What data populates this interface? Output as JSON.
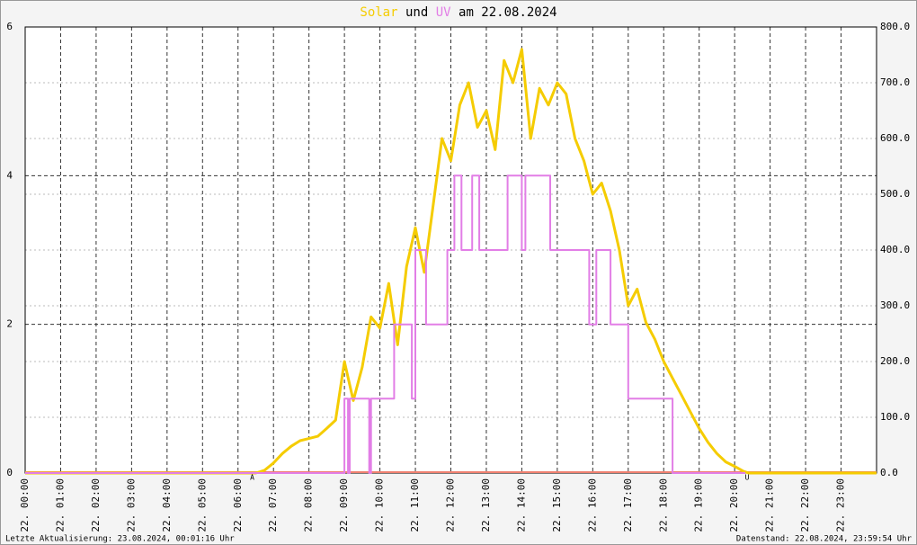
{
  "chart_data": {
    "type": "line",
    "title_middle": "und",
    "title_end": "am 22.08.2024",
    "xlim": [
      0,
      24
    ],
    "xticks": [
      {
        "value": 0,
        "label": "22. 00:00"
      },
      {
        "value": 1,
        "label": "22. 01:00"
      },
      {
        "value": 2,
        "label": "22. 02:00"
      },
      {
        "value": 3,
        "label": "22. 03:00"
      },
      {
        "value": 4,
        "label": "22. 04:00"
      },
      {
        "value": 5,
        "label": "22. 05:00"
      },
      {
        "value": 6,
        "label": "22. 06:00"
      },
      {
        "value": 7,
        "label": "22. 07:00"
      },
      {
        "value": 8,
        "label": "22. 08:00"
      },
      {
        "value": 9,
        "label": "22. 09:00"
      },
      {
        "value": 10,
        "label": "22. 10:00"
      },
      {
        "value": 11,
        "label": "22. 11:00"
      },
      {
        "value": 12,
        "label": "22. 12:00"
      },
      {
        "value": 13,
        "label": "22. 13:00"
      },
      {
        "value": 14,
        "label": "22. 14:00"
      },
      {
        "value": 15,
        "label": "22. 15:00"
      },
      {
        "value": 16,
        "label": "22. 16:00"
      },
      {
        "value": 17,
        "label": "22. 17:00"
      },
      {
        "value": 18,
        "label": "22. 18:00"
      },
      {
        "value": 19,
        "label": "22. 19:00"
      },
      {
        "value": 20,
        "label": "22. 20:00"
      },
      {
        "value": 21,
        "label": "22. 21:00"
      },
      {
        "value": 22,
        "label": "22. 22:00"
      },
      {
        "value": 23,
        "label": "22. 23:00"
      }
    ],
    "ylim": [
      0,
      6
    ],
    "yticks": [
      0,
      2,
      4,
      6
    ],
    "y2lim": [
      0,
      800
    ],
    "y2ticks": [
      {
        "value": 0,
        "label": "0.0"
      },
      {
        "value": 100,
        "label": "100.0"
      },
      {
        "value": 200,
        "label": "200.0"
      },
      {
        "value": 300,
        "label": "300.0"
      },
      {
        "value": 400,
        "label": "400.0"
      },
      {
        "value": 500,
        "label": "500.0"
      },
      {
        "value": 600,
        "label": "600.0"
      },
      {
        "value": 700,
        "label": "700.0"
      },
      {
        "value": 800,
        "label": "800.0"
      }
    ],
    "grid": true,
    "series": [
      {
        "name": "Solar",
        "color": "#f5cc00",
        "axis": "y2",
        "x": [
          0,
          6.5,
          6.75,
          7.0,
          7.25,
          7.5,
          7.75,
          8.0,
          8.25,
          8.5,
          8.75,
          9.0,
          9.25,
          9.5,
          9.75,
          10.0,
          10.25,
          10.5,
          10.75,
          11.0,
          11.25,
          11.5,
          11.75,
          12.0,
          12.25,
          12.5,
          12.75,
          13.0,
          13.25,
          13.5,
          13.75,
          14.0,
          14.25,
          14.5,
          14.75,
          15.0,
          15.25,
          15.5,
          15.75,
          16.0,
          16.25,
          16.5,
          16.75,
          17.0,
          17.25,
          17.5,
          17.75,
          18.0,
          18.25,
          18.5,
          18.75,
          19.0,
          19.25,
          19.5,
          19.75,
          20.0,
          20.25,
          20.4,
          24
        ],
        "values": [
          0,
          0,
          5,
          18,
          35,
          48,
          58,
          62,
          66,
          80,
          95,
          200,
          130,
          190,
          280,
          260,
          340,
          230,
          370,
          440,
          360,
          480,
          600,
          560,
          660,
          700,
          620,
          650,
          580,
          740,
          700,
          760,
          600,
          690,
          660,
          700,
          680,
          600,
          560,
          500,
          520,
          470,
          400,
          300,
          330,
          270,
          240,
          200,
          170,
          140,
          110,
          80,
          55,
          35,
          20,
          12,
          3,
          0,
          0
        ]
      },
      {
        "name": "UV",
        "color": "#e27ee6",
        "axis": "y",
        "x": [
          0,
          9.0,
          9.0,
          9.1,
          9.1,
          9.15,
          9.15,
          9.7,
          9.7,
          9.75,
          9.75,
          10.4,
          10.4,
          10.9,
          10.9,
          11.0,
          11.0,
          11.3,
          11.3,
          11.9,
          11.9,
          12.1,
          12.1,
          12.3,
          12.3,
          12.6,
          12.6,
          12.8,
          12.8,
          13.6,
          13.6,
          14.0,
          14.0,
          14.1,
          14.1,
          14.8,
          14.8,
          15.9,
          15.9,
          16.1,
          16.1,
          16.5,
          16.5,
          17.0,
          17.0,
          18.25,
          18.25,
          20.3
        ],
        "values": [
          0,
          0,
          1,
          1,
          0,
          0,
          1,
          1,
          0,
          0,
          1,
          1,
          2,
          2,
          1,
          1,
          3,
          3,
          2,
          2,
          3,
          3,
          4,
          4,
          3,
          3,
          4,
          4,
          3,
          3,
          4,
          4,
          3,
          3,
          4,
          4,
          3,
          3,
          2,
          2,
          3,
          3,
          2,
          2,
          1,
          1,
          0,
          0
        ]
      }
    ],
    "annotations": [
      {
        "text": "A",
        "x": 6.4
      },
      {
        "text": "U",
        "x": 20.35
      }
    ],
    "footer_left": "Letzte Aktualisierung: 23.08.2024, 00:01:16 Uhr",
    "footer_right": "Datenstand: 22.08.2024, 23:59:54 Uhr"
  }
}
